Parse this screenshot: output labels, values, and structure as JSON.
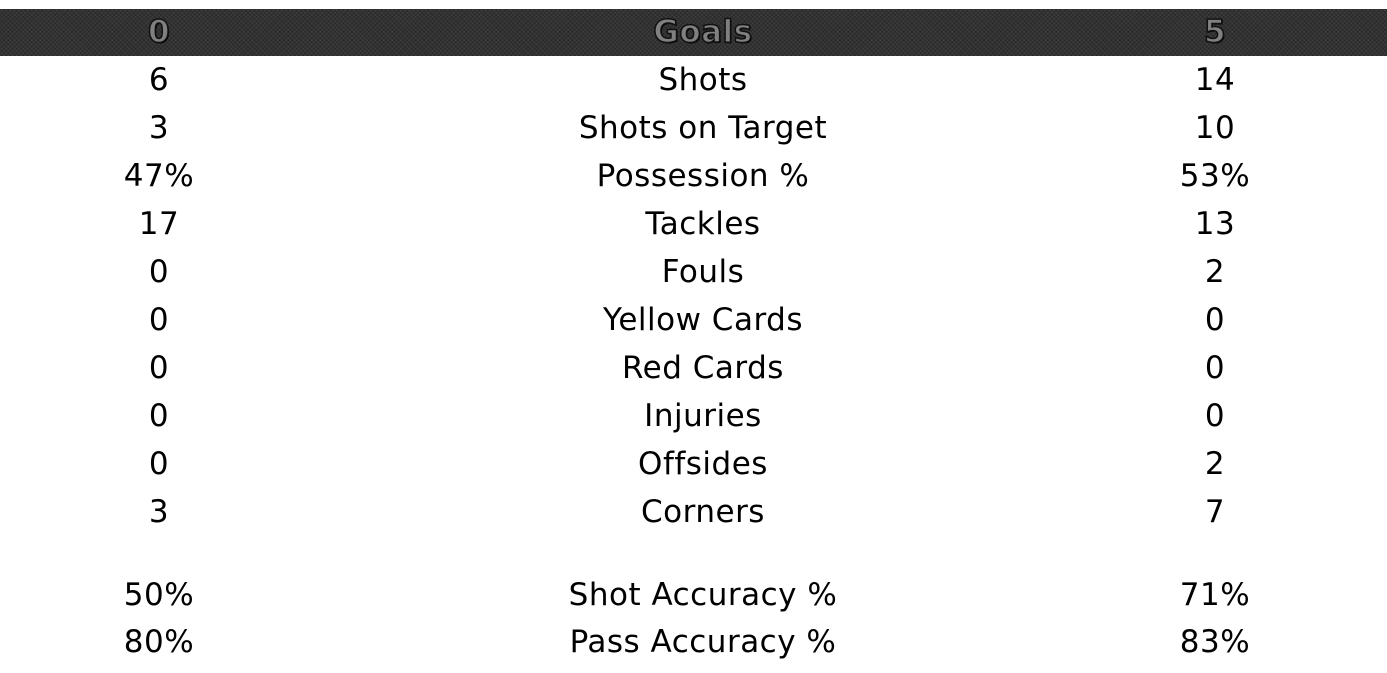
{
  "header": {
    "left": "0",
    "label": "Goals",
    "right": "5"
  },
  "rows": [
    {
      "left": "6",
      "label": "Shots",
      "right": "14"
    },
    {
      "left": "3",
      "label": "Shots on Target",
      "right": "10"
    },
    {
      "left": "47%",
      "label": "Possession %",
      "right": "53%"
    },
    {
      "left": "17",
      "label": "Tackles",
      "right": "13"
    },
    {
      "left": "0",
      "label": "Fouls",
      "right": "2"
    },
    {
      "left": "0",
      "label": "Yellow Cards",
      "right": "0"
    },
    {
      "left": "0",
      "label": "Red Cards",
      "right": "0"
    },
    {
      "left": "0",
      "label": "Injuries",
      "right": "0"
    },
    {
      "left": "0",
      "label": "Offsides",
      "right": "2"
    },
    {
      "left": "3",
      "label": "Corners",
      "right": "7"
    }
  ],
  "accuracy_rows": [
    {
      "left": "50%",
      "label": "Shot Accuracy %",
      "right": "71%"
    },
    {
      "left": "80%",
      "label": "Pass Accuracy %",
      "right": "83%"
    }
  ]
}
